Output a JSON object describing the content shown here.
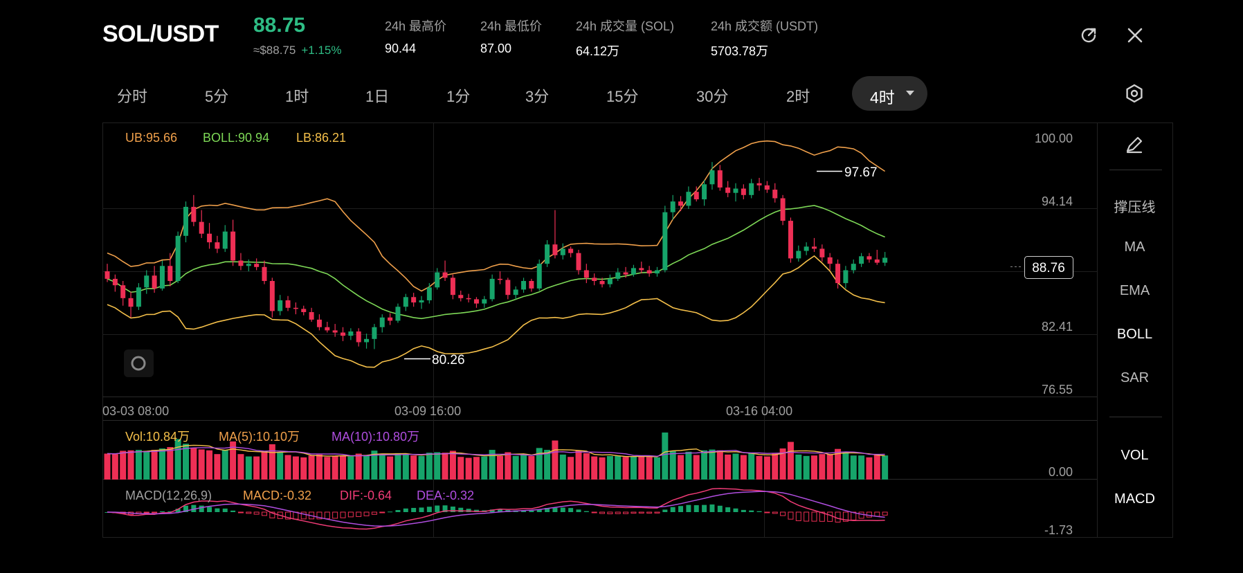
{
  "header": {
    "pair": "SOL/USDT",
    "price": "88.75",
    "approx_price": "≈$88.75",
    "change": "+1.15%",
    "stats": [
      {
        "label": "24h 最高价",
        "value": "90.44"
      },
      {
        "label": "24h 最低价",
        "value": "87.00"
      },
      {
        "label": "24h 成交量 (SOL)",
        "value": "64.12万"
      },
      {
        "label": "24h 成交额 (USDT)",
        "value": "5703.78万"
      }
    ],
    "refresh_icon": "refresh-icon",
    "close_icon": "close-icon"
  },
  "tabs": [
    "分时",
    "5分",
    "1时",
    "1日",
    "1分",
    "3分",
    "15分",
    "30分",
    "2时"
  ],
  "active_tab": "4时",
  "settings_icon": "hexagon-settings-icon",
  "indicators": {
    "ub": "UB:95.66",
    "boll": "BOLL:90.94",
    "lb": "LB:86.21",
    "vol": "Vol:10.84万",
    "vol_ma5": "MA(5):10.10万",
    "vol_ma10": "MA(10):10.80万",
    "macd_params": "MACD(12,26,9)",
    "macd": "MACD:-0.32",
    "dif": "DIF:-0.64",
    "dea": "DEA:-0.32"
  },
  "sidebar": {
    "draw_icon": "pencil-icon",
    "items": [
      "撑压线",
      "MA",
      "EMA",
      "BOLL",
      "SAR"
    ],
    "bottom_items": [
      "VOL",
      "MACD"
    ],
    "active": [
      "BOLL",
      "VOL",
      "MACD"
    ]
  },
  "chart_data": {
    "type": "candlestick",
    "y_ticks": [
      "100.00",
      "94.14",
      "82.41",
      "76.55"
    ],
    "ylim": [
      76.55,
      100.0
    ],
    "x_ticks": [
      "03-03 08:00",
      "03-09 16:00",
      "03-16 04:00"
    ],
    "current_price_label": "88.76",
    "high_marker": "97.67",
    "low_marker": "80.26",
    "vol_axis": "0.00",
    "macd_axis": "-1.73",
    "candles_ohlc": [
      [
        87.5,
        88.2,
        86.5,
        86.8
      ],
      [
        86.8,
        87.2,
        85.6,
        86.2
      ],
      [
        86.2,
        86.6,
        84.3,
        85.0
      ],
      [
        85.0,
        85.6,
        83.2,
        84.2
      ],
      [
        84.2,
        86.4,
        83.9,
        86.0
      ],
      [
        86.0,
        87.6,
        85.4,
        87.1
      ],
      [
        87.1,
        88.0,
        85.5,
        85.9
      ],
      [
        85.9,
        88.5,
        85.7,
        88.0
      ],
      [
        88.0,
        89.2,
        86.1,
        86.6
      ],
      [
        86.6,
        91.2,
        86.4,
        90.8
      ],
      [
        90.8,
        94.0,
        90.2,
        93.5
      ],
      [
        93.5,
        94.6,
        91.7,
        92.1
      ],
      [
        92.1,
        93.2,
        90.6,
        91.0
      ],
      [
        91.0,
        92.0,
        89.6,
        90.2
      ],
      [
        90.2,
        90.8,
        89.2,
        89.6
      ],
      [
        89.6,
        91.8,
        89.3,
        91.2
      ],
      [
        91.2,
        92.3,
        88.0,
        88.5
      ],
      [
        88.5,
        89.2,
        87.6,
        88.0
      ],
      [
        88.0,
        88.6,
        87.5,
        88.2
      ],
      [
        88.2,
        88.7,
        87.6,
        87.9
      ],
      [
        87.9,
        88.5,
        86.3,
        86.6
      ],
      [
        86.6,
        86.9,
        83.2,
        83.8
      ],
      [
        83.8,
        85.3,
        83.4,
        84.8
      ],
      [
        84.8,
        85.2,
        83.8,
        84.1
      ],
      [
        84.1,
        84.6,
        83.5,
        84.0
      ],
      [
        84.0,
        84.3,
        83.4,
        83.7
      ],
      [
        83.7,
        84.1,
        82.8,
        83.0
      ],
      [
        83.0,
        83.5,
        82.0,
        82.3
      ],
      [
        82.3,
        82.8,
        81.8,
        82.0
      ],
      [
        82.0,
        82.6,
        81.4,
        81.8
      ],
      [
        81.8,
        82.3,
        81.0,
        81.5
      ],
      [
        81.5,
        82.2,
        81.1,
        81.9
      ],
      [
        81.9,
        82.2,
        80.5,
        80.9
      ],
      [
        80.9,
        81.7,
        80.3,
        81.2
      ],
      [
        81.2,
        82.6,
        80.26,
        82.3
      ],
      [
        82.3,
        83.5,
        81.8,
        83.2
      ],
      [
        83.2,
        83.6,
        82.5,
        82.9
      ],
      [
        82.9,
        84.5,
        82.7,
        84.2
      ],
      [
        84.2,
        85.4,
        83.8,
        85.1
      ],
      [
        85.1,
        85.5,
        84.2,
        84.6
      ],
      [
        84.6,
        85.2,
        84.0,
        84.8
      ],
      [
        84.8,
        86.4,
        84.5,
        86.0
      ],
      [
        86.0,
        87.8,
        85.8,
        87.4
      ],
      [
        87.4,
        88.5,
        86.6,
        86.9
      ],
      [
        86.9,
        87.2,
        84.9,
        85.3
      ],
      [
        85.3,
        85.7,
        84.7,
        85.0
      ],
      [
        85.0,
        85.4,
        84.6,
        84.9
      ],
      [
        84.9,
        85.1,
        84.1,
        84.5
      ],
      [
        84.5,
        85.2,
        84.1,
        84.9
      ],
      [
        84.9,
        87.2,
        84.7,
        86.8
      ],
      [
        86.8,
        87.5,
        86.3,
        86.7
      ],
      [
        86.7,
        86.9,
        84.9,
        85.3
      ],
      [
        85.3,
        86.1,
        84.9,
        85.8
      ],
      [
        85.8,
        86.9,
        85.5,
        86.6
      ],
      [
        86.6,
        86.8,
        85.6,
        85.9
      ],
      [
        85.9,
        88.6,
        85.7,
        88.2
      ],
      [
        88.2,
        90.4,
        87.9,
        90.0
      ],
      [
        90.0,
        93.2,
        88.7,
        89.0
      ],
      [
        89.0,
        90.1,
        88.6,
        89.6
      ],
      [
        89.6,
        89.8,
        88.8,
        89.2
      ],
      [
        89.2,
        89.5,
        87.2,
        87.6
      ],
      [
        87.6,
        88.2,
        86.4,
        86.9
      ],
      [
        86.9,
        87.3,
        86.2,
        86.6
      ],
      [
        86.6,
        86.9,
        86.0,
        86.3
      ],
      [
        86.3,
        87.2,
        86.0,
        86.8
      ],
      [
        86.8,
        87.8,
        86.6,
        87.4
      ],
      [
        87.4,
        87.9,
        86.9,
        87.2
      ],
      [
        87.2,
        88.1,
        87.0,
        87.8
      ],
      [
        87.8,
        88.4,
        87.3,
        87.6
      ],
      [
        87.6,
        88.0,
        87.0,
        87.3
      ],
      [
        87.3,
        87.9,
        87.0,
        87.6
      ],
      [
        87.6,
        93.6,
        87.4,
        93.0
      ],
      [
        93.0,
        94.6,
        92.3,
        94.0
      ],
      [
        94.0,
        94.5,
        93.1,
        93.6
      ],
      [
        93.6,
        95.4,
        93.3,
        94.9
      ],
      [
        94.9,
        95.4,
        94.0,
        94.2
      ],
      [
        94.2,
        96.0,
        93.6,
        95.6
      ],
      [
        95.6,
        97.67,
        95.1,
        96.9
      ],
      [
        96.9,
        97.4,
        95.0,
        95.3
      ],
      [
        95.3,
        95.9,
        94.4,
        94.8
      ],
      [
        94.8,
        95.7,
        94.0,
        95.2
      ],
      [
        95.2,
        95.6,
        94.2,
        94.6
      ],
      [
        94.6,
        96.1,
        94.3,
        95.7
      ],
      [
        95.7,
        96.2,
        95.0,
        95.5
      ],
      [
        95.5,
        95.9,
        94.8,
        95.1
      ],
      [
        95.1,
        95.7,
        93.9,
        94.3
      ],
      [
        94.3,
        94.6,
        91.8,
        92.2
      ],
      [
        92.2,
        92.5,
        88.3,
        88.7
      ],
      [
        88.7,
        89.9,
        88.4,
        89.4
      ],
      [
        89.4,
        90.2,
        89.0,
        89.8
      ],
      [
        89.8,
        90.6,
        89.3,
        89.6
      ],
      [
        89.6,
        90.0,
        88.4,
        88.8
      ],
      [
        88.8,
        89.2,
        87.6,
        88.2
      ],
      [
        88.2,
        88.6,
        85.9,
        86.4
      ],
      [
        86.4,
        88.0,
        85.9,
        87.6
      ],
      [
        87.6,
        88.6,
        87.3,
        88.2
      ],
      [
        88.2,
        89.2,
        87.9,
        88.9
      ],
      [
        88.9,
        89.2,
        88.3,
        88.6
      ],
      [
        88.6,
        89.5,
        88.1,
        88.3
      ],
      [
        88.3,
        89.3,
        88.0,
        88.76
      ]
    ]
  }
}
